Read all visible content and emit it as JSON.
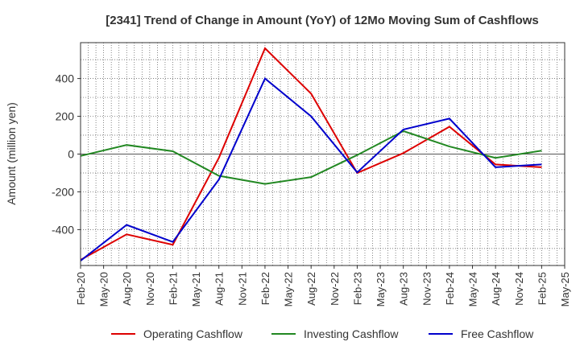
{
  "chart_data": {
    "type": "line",
    "title": "[2341]  Trend of Change in Amount (YoY) of 12Mo Moving Sum of Cashflows",
    "ylabel": "Amount (million yen)",
    "xlabel": "",
    "ylim": [
      -590,
      590
    ],
    "yticks": [
      -400,
      -200,
      0,
      200,
      400
    ],
    "categories": [
      "Feb-20",
      "May-20",
      "Aug-20",
      "Nov-20",
      "Feb-21",
      "May-21",
      "Aug-21",
      "Nov-21",
      "Feb-22",
      "May-22",
      "Aug-22",
      "Nov-22",
      "Feb-23",
      "May-23",
      "Aug-23",
      "Nov-23",
      "Feb-24",
      "May-24",
      "Aug-24",
      "Nov-24",
      "Feb-25",
      "May-25"
    ],
    "series": [
      {
        "name": "Operating Cashflow",
        "color": "#dd0000",
        "points": [
          {
            "x": "Feb-20",
            "y": -560
          },
          {
            "x": "Aug-20",
            "y": -425
          },
          {
            "x": "Feb-21",
            "y": -480
          },
          {
            "x": "Aug-21",
            "y": -20
          },
          {
            "x": "Feb-22",
            "y": 560
          },
          {
            "x": "Aug-22",
            "y": 320
          },
          {
            "x": "Feb-23",
            "y": -100
          },
          {
            "x": "Aug-23",
            "y": 5
          },
          {
            "x": "Feb-24",
            "y": 145
          },
          {
            "x": "Aug-24",
            "y": -55
          },
          {
            "x": "Feb-25",
            "y": -70
          }
        ]
      },
      {
        "name": "Investing Cashflow",
        "color": "#228822",
        "points": [
          {
            "x": "Feb-20",
            "y": -10
          },
          {
            "x": "Aug-20",
            "y": 48
          },
          {
            "x": "Feb-21",
            "y": 15
          },
          {
            "x": "Aug-21",
            "y": -115
          },
          {
            "x": "Feb-22",
            "y": -158
          },
          {
            "x": "Aug-22",
            "y": -122
          },
          {
            "x": "Feb-23",
            "y": -5
          },
          {
            "x": "Aug-23",
            "y": 122
          },
          {
            "x": "Feb-24",
            "y": 40
          },
          {
            "x": "Aug-24",
            "y": -20
          },
          {
            "x": "Feb-25",
            "y": 18
          }
        ]
      },
      {
        "name": "Free Cashflow",
        "color": "#0000cc",
        "points": [
          {
            "x": "Feb-20",
            "y": -565
          },
          {
            "x": "Aug-20",
            "y": -375
          },
          {
            "x": "Feb-21",
            "y": -465
          },
          {
            "x": "Aug-21",
            "y": -135
          },
          {
            "x": "Feb-22",
            "y": 400
          },
          {
            "x": "Aug-22",
            "y": 200
          },
          {
            "x": "Feb-23",
            "y": -97
          },
          {
            "x": "Aug-23",
            "y": 130
          },
          {
            "x": "Feb-24",
            "y": 188
          },
          {
            "x": "Aug-24",
            "y": -70
          },
          {
            "x": "Feb-25",
            "y": -55
          }
        ]
      }
    ],
    "legend": [
      "Operating Cashflow",
      "Investing Cashflow",
      "Free Cashflow"
    ],
    "legend_position": "bottom",
    "grid": true
  }
}
